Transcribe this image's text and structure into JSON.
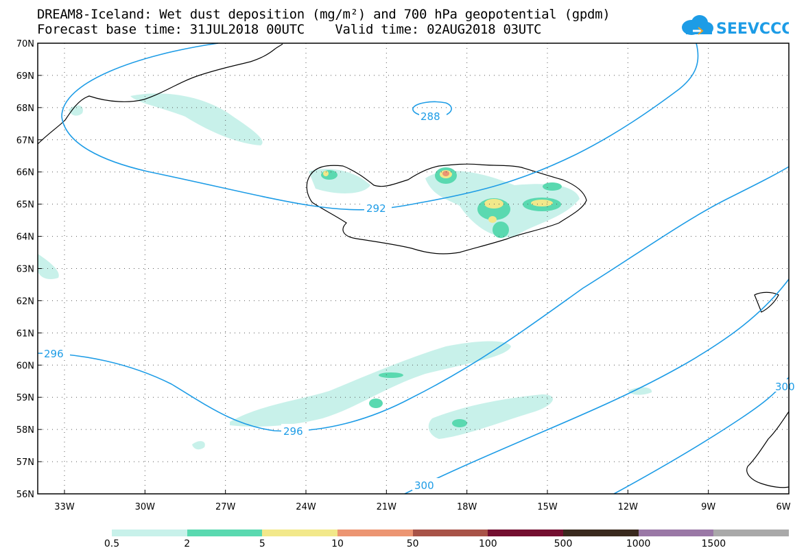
{
  "title": {
    "line1": "DREAM8-Iceland: Wet dust deposition (mg/m²) and 700 hPa geopotential (gpdm)",
    "line2": "Forecast base time: 31JUL2018 00UTC    Valid time: 02AUG2018 03UTC"
  },
  "logo": {
    "text": "SEEVCCC",
    "icon": "cloud-icon",
    "color": "#1d9ce6"
  },
  "map": {
    "lat_range": [
      "56N",
      "70N"
    ],
    "lon_range": [
      "33W",
      "6W"
    ],
    "lat_labels": [
      "70N",
      "69N",
      "68N",
      "67N",
      "66N",
      "65N",
      "64N",
      "63N",
      "62N",
      "61N",
      "60N",
      "59N",
      "58N",
      "57N",
      "56N"
    ],
    "lon_labels": [
      "33W",
      "30W",
      "27W",
      "24W",
      "21W",
      "18W",
      "15W",
      "12W",
      "9W",
      "6W"
    ],
    "contour_labels": [
      "288",
      "292",
      "296",
      "296",
      "300",
      "300"
    ],
    "contour_color": "#1d9ce6"
  },
  "legend": {
    "labels": [
      "0.5",
      "2",
      "5",
      "10",
      "50",
      "100",
      "500",
      "1000",
      "1500"
    ],
    "colors": [
      "#c8f1ea",
      "#5ad9b0",
      "#f2e88a",
      "#ec9572",
      "#a85348",
      "#740f30",
      "#3a2a1e",
      "#9a78a6",
      "#a9a9a9"
    ]
  }
}
